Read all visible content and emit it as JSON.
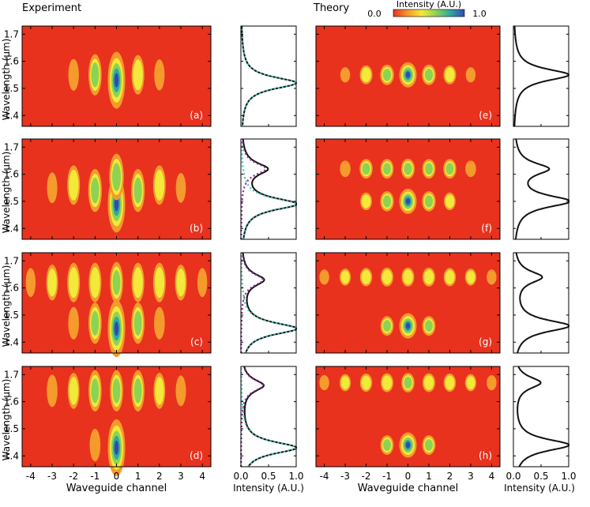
{
  "chart_data": {
    "type": "heatmap",
    "section_titles": {
      "experiment": "Experiment",
      "theory": "Theory"
    },
    "colorbar": {
      "label": "Intensity (A.U.)",
      "min_label": "0.0",
      "max_label": "1.0",
      "colors": [
        "#e8321e",
        "#f59a2c",
        "#f3e93a",
        "#8ed254",
        "#2ea9a1",
        "#3449b2"
      ]
    },
    "ylabel": "Wavelength (μm)",
    "ylim": [
      1.36,
      1.73
    ],
    "yticks": [
      "1.4",
      "1.5",
      "1.6",
      "1.7"
    ],
    "map_xlabel": "Waveguide channel",
    "map_xticks": [
      "-4",
      "-3",
      "-2",
      "-1",
      "0",
      "1",
      "2",
      "3",
      "4"
    ],
    "spec_xlabel": "Intensity (A.U.)",
    "spec_xticks": [
      "0.0",
      "0.5",
      "1.0"
    ],
    "line_colors": {
      "measured": "#111111",
      "fit_long": "#8b2a8f",
      "fit_short": "#48c2b8"
    },
    "rows": [
      {
        "exp_panel": "(a)",
        "theory_panel": "(e)",
        "exp_map": [
          {
            "ch": -2,
            "wl": 1.55,
            "amp": 0.28
          },
          {
            "ch": -1,
            "wl": 1.55,
            "amp": 0.55
          },
          {
            "ch": 0,
            "wl": 1.53,
            "amp": 1.0
          },
          {
            "ch": 1,
            "wl": 1.55,
            "amp": 0.5
          },
          {
            "ch": 2,
            "wl": 1.55,
            "amp": 0.26
          }
        ],
        "th_map": [
          {
            "ch": -3,
            "wl": 1.55,
            "amp": 0.2
          },
          {
            "ch": -2,
            "wl": 1.55,
            "amp": 0.5
          },
          {
            "ch": -1,
            "wl": 1.55,
            "amp": 0.62
          },
          {
            "ch": 0,
            "wl": 1.55,
            "amp": 1.0
          },
          {
            "ch": 1,
            "wl": 1.55,
            "amp": 0.62
          },
          {
            "ch": 2,
            "wl": 1.55,
            "amp": 0.5
          },
          {
            "ch": 3,
            "wl": 1.55,
            "amp": 0.2
          }
        ],
        "exp_peaks": [
          {
            "wl": 1.52,
            "amp": 1.0
          }
        ],
        "th_peaks": [
          {
            "wl": 1.55,
            "amp": 1.0
          }
        ]
      },
      {
        "exp_panel": "(b)",
        "theory_panel": "(f)",
        "exp_map": [
          {
            "ch": -3,
            "wl": 1.55,
            "amp": 0.25
          },
          {
            "ch": -2,
            "wl": 1.56,
            "amp": 0.5
          },
          {
            "ch": -1,
            "wl": 1.54,
            "amp": 0.6
          },
          {
            "ch": 0,
            "wl": 1.49,
            "amp": 1.0
          },
          {
            "ch": 0,
            "wl": 1.59,
            "amp": 0.7
          },
          {
            "ch": 1,
            "wl": 1.54,
            "amp": 0.6
          },
          {
            "ch": 2,
            "wl": 1.56,
            "amp": 0.5
          },
          {
            "ch": 3,
            "wl": 1.55,
            "amp": 0.22
          }
        ],
        "th_map": [
          {
            "ch": -3,
            "wl": 1.62,
            "amp": 0.3
          },
          {
            "ch": -2,
            "wl": 1.62,
            "amp": 0.55
          },
          {
            "ch": -1,
            "wl": 1.62,
            "amp": 0.55
          },
          {
            "ch": 0,
            "wl": 1.62,
            "amp": 0.6
          },
          {
            "ch": 1,
            "wl": 1.62,
            "amp": 0.55
          },
          {
            "ch": 2,
            "wl": 1.62,
            "amp": 0.55
          },
          {
            "ch": 3,
            "wl": 1.62,
            "amp": 0.3
          },
          {
            "ch": -2,
            "wl": 1.5,
            "amp": 0.4
          },
          {
            "ch": -1,
            "wl": 1.5,
            "amp": 0.6
          },
          {
            "ch": 0,
            "wl": 1.5,
            "amp": 1.0
          },
          {
            "ch": 1,
            "wl": 1.5,
            "amp": 0.6
          },
          {
            "ch": 2,
            "wl": 1.5,
            "amp": 0.4
          }
        ],
        "exp_peaks": [
          {
            "wl": 1.49,
            "amp": 1.0
          },
          {
            "wl": 1.62,
            "amp": 0.45
          }
        ],
        "th_peaks": [
          {
            "wl": 1.5,
            "amp": 1.0
          },
          {
            "wl": 1.62,
            "amp": 0.6
          }
        ]
      },
      {
        "exp_panel": "(c)",
        "theory_panel": "(g)",
        "exp_map": [
          {
            "ch": -4,
            "wl": 1.62,
            "amp": 0.2
          },
          {
            "ch": -3,
            "wl": 1.62,
            "amp": 0.4
          },
          {
            "ch": -2,
            "wl": 1.62,
            "amp": 0.5
          },
          {
            "ch": -1,
            "wl": 1.62,
            "amp": 0.5
          },
          {
            "ch": 0,
            "wl": 1.62,
            "amp": 0.55
          },
          {
            "ch": 1,
            "wl": 1.62,
            "amp": 0.5
          },
          {
            "ch": 2,
            "wl": 1.62,
            "amp": 0.5
          },
          {
            "ch": 3,
            "wl": 1.62,
            "amp": 0.4
          },
          {
            "ch": 4,
            "wl": 1.62,
            "amp": 0.2
          },
          {
            "ch": -2,
            "wl": 1.47,
            "amp": 0.3
          },
          {
            "ch": -1,
            "wl": 1.47,
            "amp": 0.55
          },
          {
            "ch": 0,
            "wl": 1.45,
            "amp": 1.0
          },
          {
            "ch": 1,
            "wl": 1.47,
            "amp": 0.55
          },
          {
            "ch": 2,
            "wl": 1.47,
            "amp": 0.3
          }
        ],
        "th_map": [
          {
            "ch": -4,
            "wl": 1.64,
            "amp": 0.2
          },
          {
            "ch": -3,
            "wl": 1.64,
            "amp": 0.35
          },
          {
            "ch": -2,
            "wl": 1.64,
            "amp": 0.45
          },
          {
            "ch": -1,
            "wl": 1.64,
            "amp": 0.5
          },
          {
            "ch": 0,
            "wl": 1.64,
            "amp": 0.5
          },
          {
            "ch": 1,
            "wl": 1.64,
            "amp": 0.5
          },
          {
            "ch": 2,
            "wl": 1.64,
            "amp": 0.45
          },
          {
            "ch": 3,
            "wl": 1.64,
            "amp": 0.35
          },
          {
            "ch": 4,
            "wl": 1.64,
            "amp": 0.2
          },
          {
            "ch": -1,
            "wl": 1.46,
            "amp": 0.55
          },
          {
            "ch": 0,
            "wl": 1.46,
            "amp": 1.0
          },
          {
            "ch": 1,
            "wl": 1.46,
            "amp": 0.55
          }
        ],
        "exp_peaks": [
          {
            "wl": 1.45,
            "amp": 1.0
          },
          {
            "wl": 1.63,
            "amp": 0.4
          }
        ],
        "th_peaks": [
          {
            "wl": 1.46,
            "amp": 1.0
          },
          {
            "wl": 1.64,
            "amp": 0.5
          }
        ]
      },
      {
        "exp_panel": "(d)",
        "theory_panel": "(h)",
        "exp_map": [
          {
            "ch": -3,
            "wl": 1.64,
            "amp": 0.3
          },
          {
            "ch": -2,
            "wl": 1.64,
            "amp": 0.4
          },
          {
            "ch": -1,
            "wl": 1.64,
            "amp": 0.55
          },
          {
            "ch": 0,
            "wl": 1.64,
            "amp": 0.55
          },
          {
            "ch": 1,
            "wl": 1.64,
            "amp": 0.55
          },
          {
            "ch": 2,
            "wl": 1.64,
            "amp": 0.4
          },
          {
            "ch": 3,
            "wl": 1.64,
            "amp": 0.25
          },
          {
            "ch": -1,
            "wl": 1.44,
            "amp": 0.3
          },
          {
            "ch": 0,
            "wl": 1.43,
            "amp": 1.0
          }
        ],
        "th_map": [
          {
            "ch": -4,
            "wl": 1.67,
            "amp": 0.2
          },
          {
            "ch": -3,
            "wl": 1.67,
            "amp": 0.35
          },
          {
            "ch": -2,
            "wl": 1.67,
            "amp": 0.45
          },
          {
            "ch": -1,
            "wl": 1.67,
            "amp": 0.5
          },
          {
            "ch": 0,
            "wl": 1.67,
            "amp": 0.55
          },
          {
            "ch": 1,
            "wl": 1.67,
            "amp": 0.5
          },
          {
            "ch": 2,
            "wl": 1.67,
            "amp": 0.45
          },
          {
            "ch": 3,
            "wl": 1.67,
            "amp": 0.35
          },
          {
            "ch": 4,
            "wl": 1.67,
            "amp": 0.2
          },
          {
            "ch": -1,
            "wl": 1.44,
            "amp": 0.55
          },
          {
            "ch": 0,
            "wl": 1.44,
            "amp": 1.0
          },
          {
            "ch": 1,
            "wl": 1.44,
            "amp": 0.55
          }
        ],
        "exp_peaks": [
          {
            "wl": 1.43,
            "amp": 1.0
          },
          {
            "wl": 1.66,
            "amp": 0.4
          }
        ],
        "th_peaks": [
          {
            "wl": 1.44,
            "amp": 1.0
          },
          {
            "wl": 1.67,
            "amp": 0.48
          }
        ]
      }
    ]
  }
}
